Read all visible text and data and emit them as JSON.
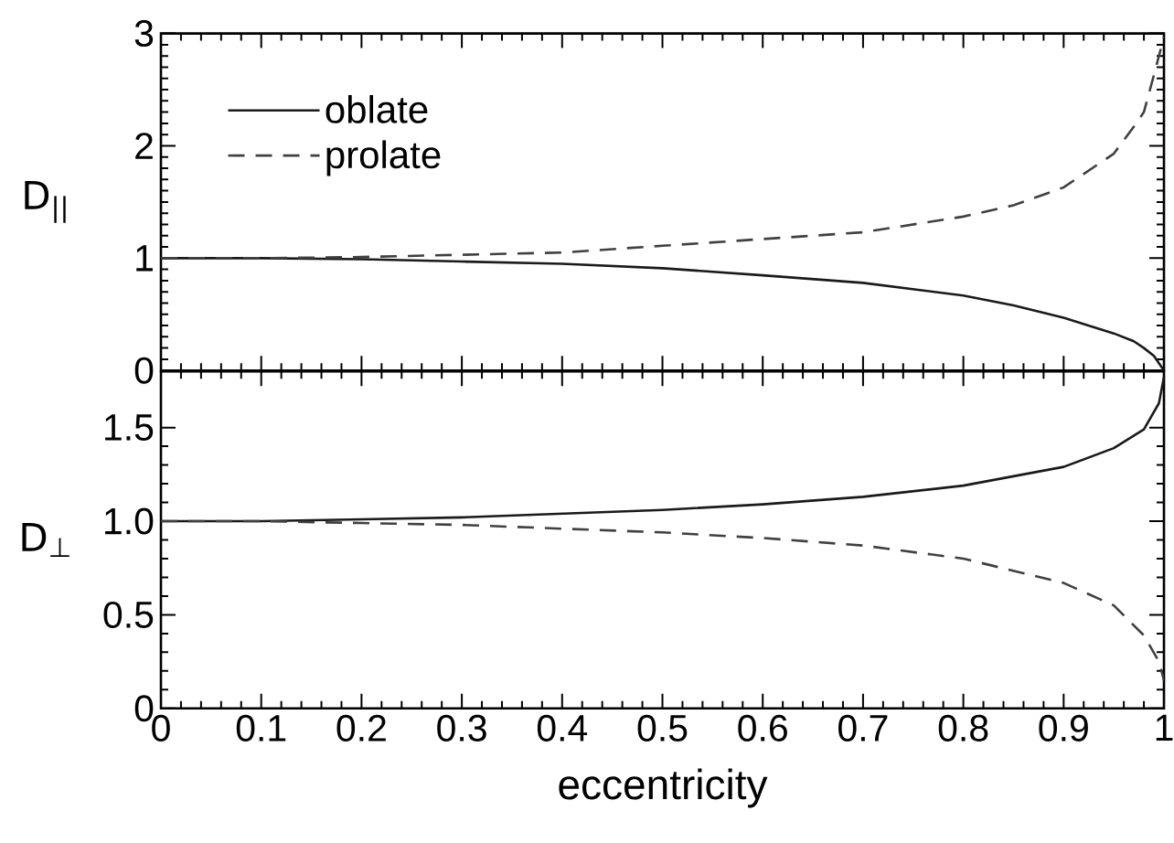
{
  "chart_data": [
    {
      "type": "line",
      "ylabel": "D$_{||}$",
      "x": [
        0,
        0.1,
        0.2,
        0.3,
        0.4,
        0.5,
        0.6,
        0.7,
        0.8,
        0.85,
        0.9,
        0.95,
        0.97,
        0.98,
        0.99,
        1.0
      ],
      "series": [
        {
          "name": "oblate",
          "color": "#1a1a1a",
          "line_style": "solid",
          "values": [
            1,
            1.0,
            0.99,
            0.97,
            0.95,
            0.91,
            0.847,
            0.78,
            0.667,
            0.58,
            0.47,
            0.33,
            0.26,
            0.2,
            0.13,
            0
          ]
        },
        {
          "name": "prolate",
          "color": "#404040",
          "line_style": "dashed",
          "values": [
            1,
            1.0,
            1.01,
            1.03,
            1.05,
            1.11,
            1.17,
            1.23,
            1.37,
            1.47,
            1.63,
            1.93,
            2.17,
            2.3,
            2.63,
            2.97
          ]
        }
      ],
      "xlim": [
        0,
        1
      ],
      "xticks": [
        0,
        0.1,
        0.2,
        0.3,
        0.4,
        0.5,
        0.6,
        0.7,
        0.8,
        0.9,
        1
      ],
      "ylim": [
        0,
        3
      ],
      "yticks": [
        0,
        1,
        2,
        3
      ],
      "tick_labels": "y",
      "legend": "top left",
      "grid": false
    },
    {
      "type": "line",
      "xlabel": "eccentricity",
      "ylabel": "D$_{⊥}$",
      "x": [
        0,
        0.1,
        0.2,
        0.3,
        0.4,
        0.5,
        0.6,
        0.7,
        0.8,
        0.9,
        0.95,
        0.98,
        0.995,
        1.0
      ],
      "series": [
        {
          "color": "#1a1a1a",
          "line_style": "solid",
          "values": [
            1,
            1.0,
            1.01,
            1.02,
            1.04,
            1.06,
            1.09,
            1.13,
            1.19,
            1.29,
            1.39,
            1.49,
            1.63,
            1.77
          ]
        },
        {
          "color": "#404040",
          "line_style": "dashed",
          "values": [
            1,
            1.0,
            0.99,
            0.98,
            0.96,
            0.94,
            0.91,
            0.87,
            0.8,
            0.67,
            0.55,
            0.39,
            0.25,
            0.15
          ]
        }
      ],
      "xlim": [
        0,
        1
      ],
      "xticks": [
        0,
        0.1,
        0.2,
        0.3,
        0.4,
        0.5,
        0.6,
        0.7,
        0.8,
        0.9,
        1
      ],
      "ylim": [
        0,
        1.8
      ],
      "yticks": [
        0,
        0.5,
        {
          "value": 1,
          "label": "1.0"
        },
        1.5
      ],
      "grid": false
    }
  ]
}
